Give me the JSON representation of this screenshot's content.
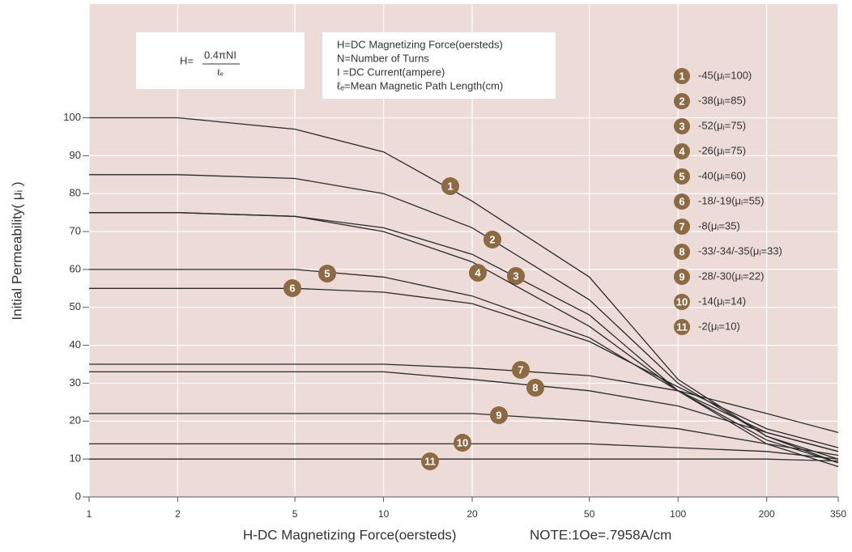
{
  "chart_data": {
    "type": "line",
    "ylabel": "Initial Permeability( μᵢ )",
    "xlabel": "H-DC Magnetizing Force(oersteds)",
    "note": "NOTE:1Oe=.7958A/cm",
    "formula": {
      "lhs": "H=",
      "numerator": "0.4πNI",
      "denominator": "ℓₑ"
    },
    "definitions": [
      "H=DC Magnetizing Force(oersteds)",
      "N=Number of Turns",
      "I =DC Current(ampere)",
      "ℓₑ=Mean Magnetic Path Length(cm)"
    ],
    "x": [
      1,
      2,
      5,
      10,
      20,
      50,
      100,
      200,
      350
    ],
    "xlim": [
      1,
      350
    ],
    "xticks": [
      1,
      2,
      5,
      10,
      20,
      50,
      100,
      200,
      350
    ],
    "xscale": "log",
    "ylim": [
      0,
      130
    ],
    "yticks": [
      0,
      10,
      20,
      30,
      40,
      50,
      60,
      70,
      80,
      90,
      100
    ],
    "grid": true,
    "color": "#2a2a2a",
    "marker_color": "#8b6a44",
    "background": "#ecdbd7",
    "series": [
      {
        "label": "1",
        "name": "-45(μᵢ=100)",
        "values": [
          100,
          100,
          97,
          91,
          78,
          58,
          31,
          16,
          9
        ]
      },
      {
        "label": "2",
        "name": "-38(μᵢ=85)",
        "values": [
          85,
          85,
          84,
          80,
          71,
          52,
          30,
          16,
          10
        ]
      },
      {
        "label": "3",
        "name": "-52(μᵢ=75)",
        "values": [
          75,
          75,
          74,
          71,
          64,
          48,
          28,
          14,
          8
        ]
      },
      {
        "label": "4",
        "name": "-26(μᵢ=75)",
        "values": [
          75,
          75,
          74,
          70,
          62,
          45,
          28,
          15,
          9
        ]
      },
      {
        "label": "5",
        "name": "-40(μᵢ=60)",
        "values": [
          60,
          60,
          60,
          58,
          53,
          42,
          28,
          17,
          12
        ]
      },
      {
        "label": "6",
        "name": "-18/-19(μᵢ=55)",
        "values": [
          55,
          55,
          55,
          54,
          51,
          41,
          29,
          18,
          13
        ]
      },
      {
        "label": "7",
        "name": "-8(μᵢ=35)",
        "values": [
          35,
          35,
          35,
          35,
          34,
          32,
          28,
          22,
          17
        ]
      },
      {
        "label": "8",
        "name": "-33/-34/-35(μᵢ=33)",
        "values": [
          33,
          33,
          33,
          33,
          31,
          28,
          24,
          17,
          12
        ]
      },
      {
        "label": "9",
        "name": "-28/-30(μᵢ=22)",
        "values": [
          22,
          22,
          22,
          22,
          22,
          20,
          18,
          14,
          11
        ]
      },
      {
        "label": "10",
        "name": "-14(μᵢ=14)",
        "values": [
          14,
          14,
          14,
          14,
          14,
          14,
          13,
          12,
          10
        ]
      },
      {
        "label": "11",
        "name": "-2(μᵢ=10)",
        "values": [
          10,
          10,
          10,
          10,
          10,
          10,
          10,
          10,
          9.5
        ]
      }
    ]
  }
}
